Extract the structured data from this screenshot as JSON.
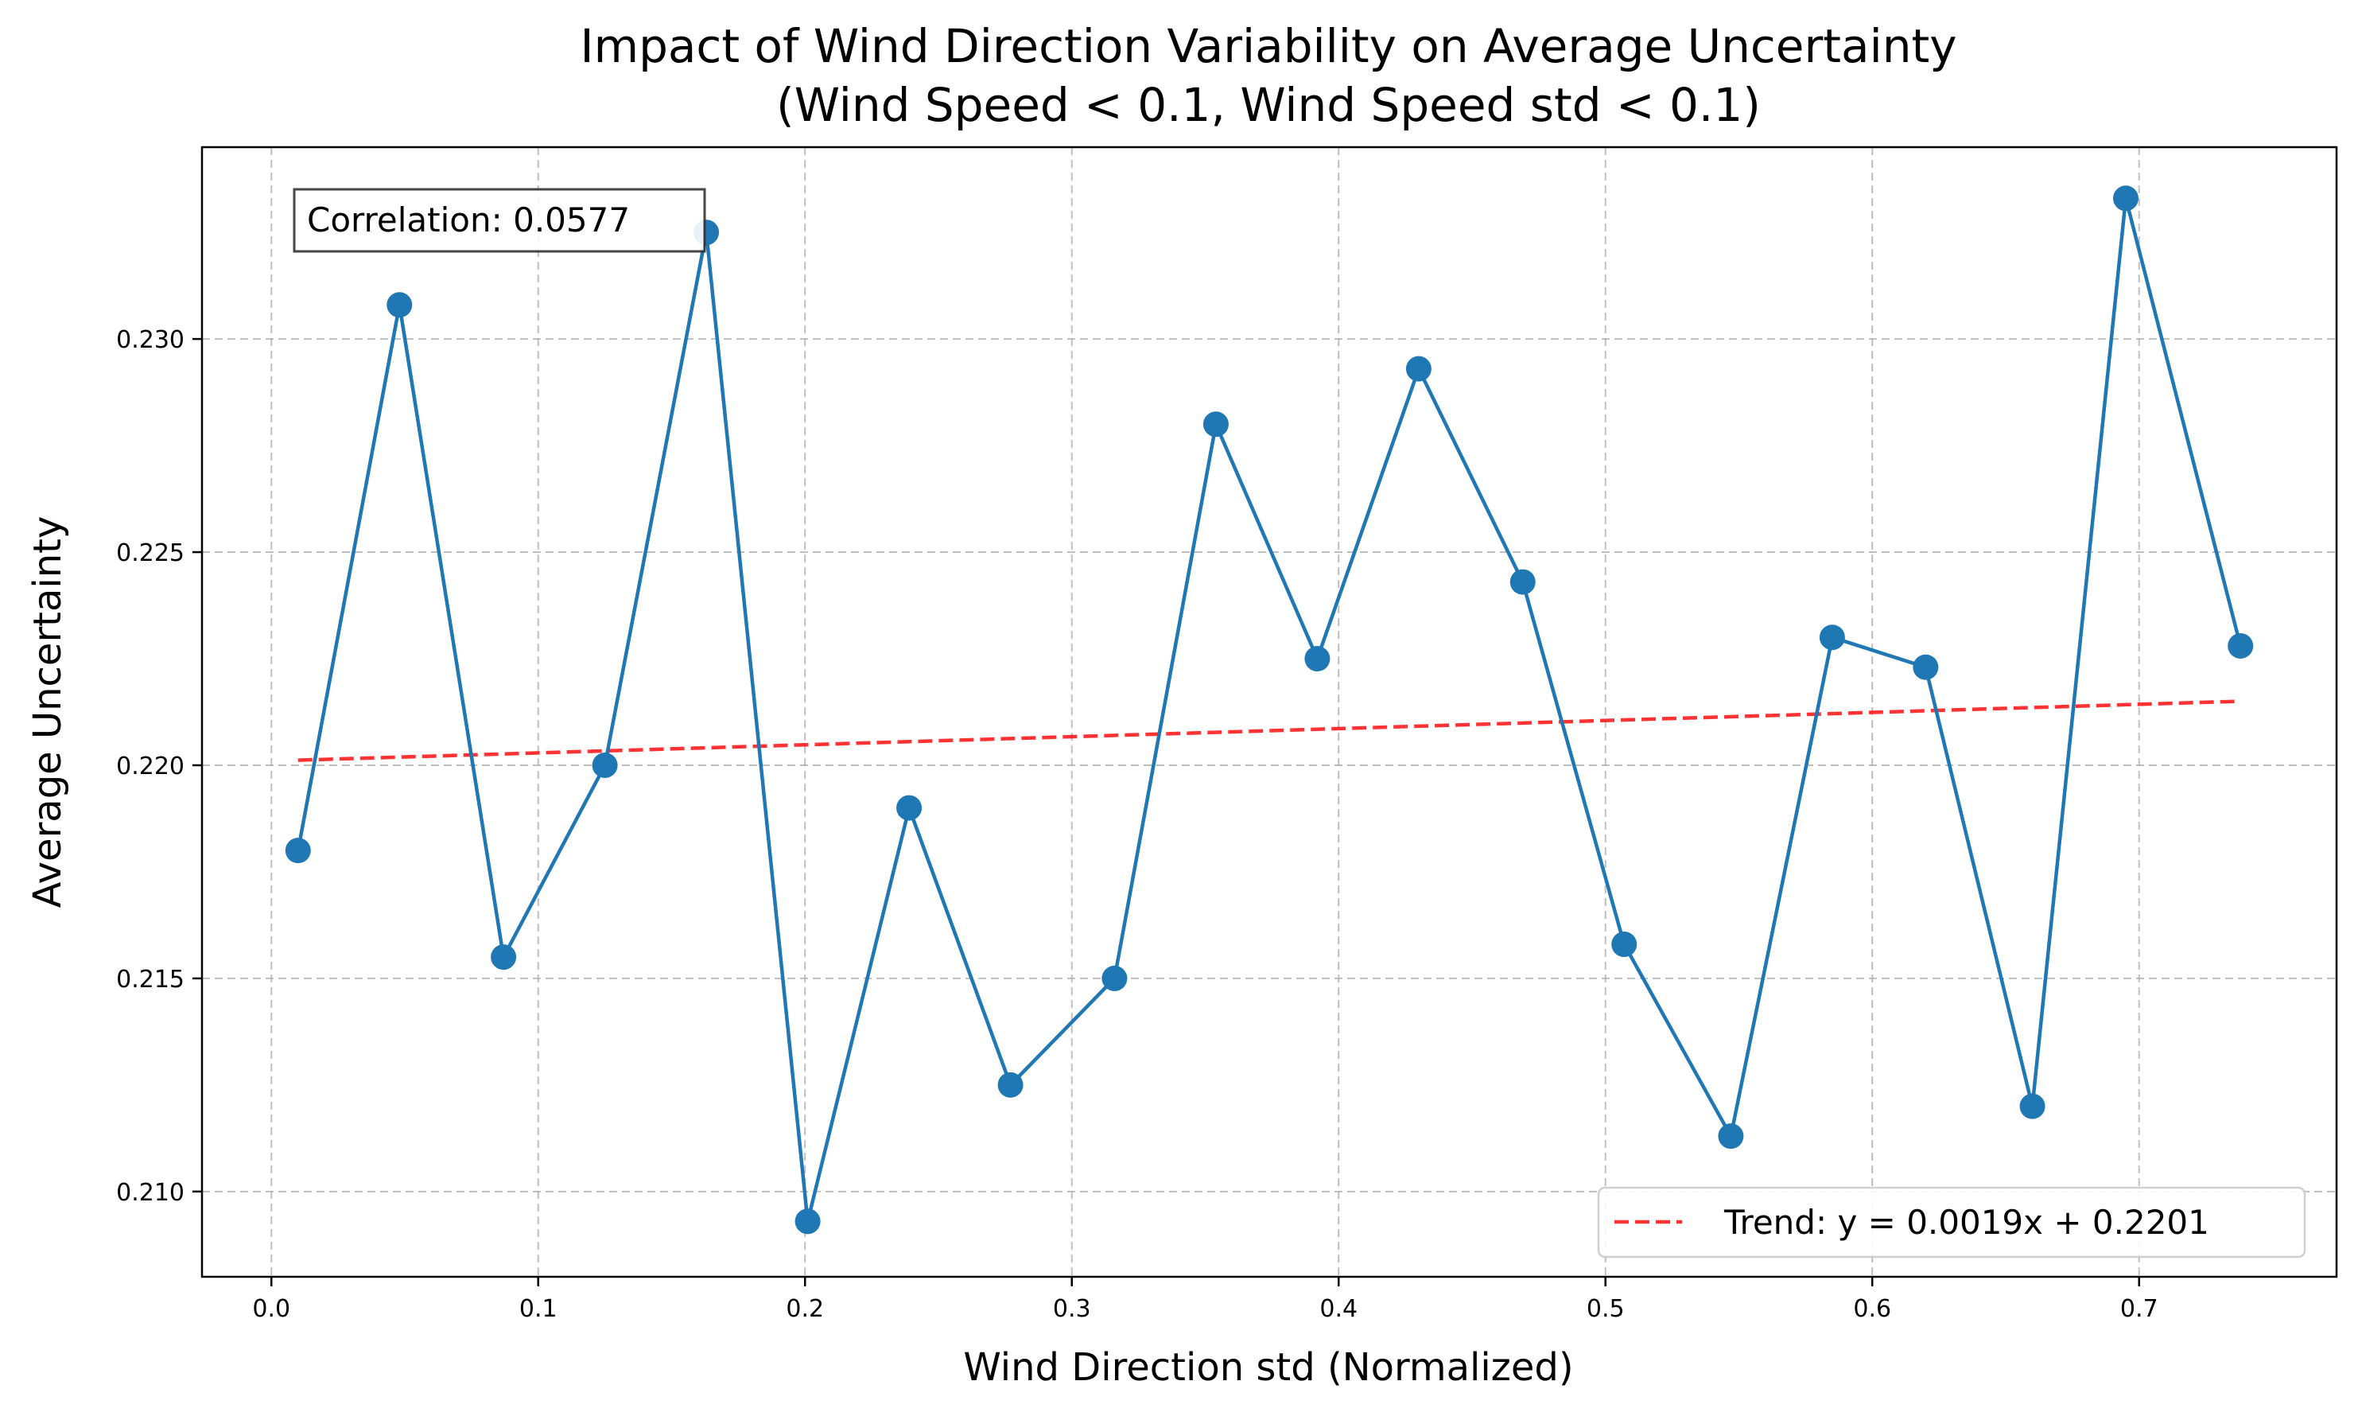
{
  "chart_data": {
    "type": "line",
    "title": "Impact of Wind Direction Variability on Average Uncertainty",
    "subtitle": "(Wind Speed < 0.1, Wind Speed std < 0.1)",
    "xlabel": "Wind Direction std (Normalized)",
    "ylabel": "Average Uncertainty",
    "xlim": [
      -0.026,
      0.774
    ],
    "ylim": [
      0.208,
      0.2345
    ],
    "xticks": [
      0.0,
      0.1,
      0.2,
      0.3,
      0.4,
      0.5,
      0.6,
      0.7
    ],
    "xtick_labels": [
      "0.0",
      "0.1",
      "0.2",
      "0.3",
      "0.4",
      "0.5",
      "0.6",
      "0.7"
    ],
    "yticks": [
      0.21,
      0.215,
      0.22,
      0.225,
      0.23
    ],
    "ytick_labels": [
      "0.210",
      "0.215",
      "0.220",
      "0.225",
      "0.230"
    ],
    "grid": true,
    "series": [
      {
        "color": "#1f77b4",
        "marker": "circle",
        "x": [
          0.01,
          0.048,
          0.087,
          0.125,
          0.163,
          0.201,
          0.239,
          0.277,
          0.316,
          0.354,
          0.392,
          0.43,
          0.469,
          0.507,
          0.547,
          0.585,
          0.62,
          0.66,
          0.695,
          0.738
        ],
        "y": [
          0.218,
          0.2308,
          0.2155,
          0.22,
          0.2325,
          0.2093,
          0.219,
          0.2125,
          0.215,
          0.228,
          0.2225,
          0.2293,
          0.2243,
          0.2158,
          0.2113,
          0.223,
          0.2223,
          0.212,
          0.2333,
          0.2228
        ]
      }
    ],
    "trend": {
      "label": "Trend: y = 0.0019x + 0.2201",
      "slope": 0.0019,
      "intercept": 0.2201,
      "x_range": [
        0.01,
        0.738
      ],
      "color": "#ff0000"
    },
    "annotation": {
      "text": "Correlation: 0.0577",
      "placement": "top-left"
    },
    "legend_placement": "lower-right"
  }
}
